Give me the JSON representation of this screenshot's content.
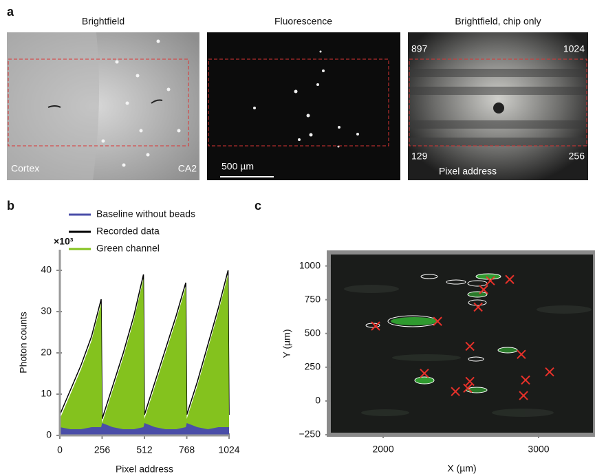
{
  "panel_labels": [
    "a",
    "b",
    "c"
  ],
  "panel_a": {
    "images": [
      {
        "title": "Brightfield",
        "labels": [
          "Cortex",
          "CA2"
        ]
      },
      {
        "title": "Fluorescence",
        "scale_bar": "500 µm"
      },
      {
        "title": "Brightfield, chip only",
        "labels": [
          "897",
          "1024",
          "129",
          "256",
          "Pixel address"
        ]
      }
    ]
  },
  "chart_data": [
    {
      "type": "area",
      "ylabel": "Photon counts",
      "multiplier": "×10³",
      "xlabel": "Pixel address",
      "x": [
        0,
        64,
        128,
        192,
        250,
        256,
        320,
        384,
        448,
        506,
        512,
        576,
        640,
        704,
        762,
        768,
        832,
        896,
        960,
        1018,
        1024
      ],
      "series": [
        {
          "name": "Baseline without beads",
          "color": "#4a4ea8",
          "style": "area",
          "values": [
            2,
            1.5,
            1.5,
            2,
            2,
            3,
            2,
            1.5,
            1.5,
            2,
            3,
            2,
            1.5,
            1.5,
            2,
            3,
            2,
            1.5,
            2,
            2,
            2
          ]
        },
        {
          "name": "Recorded data",
          "color": "#000000",
          "style": "line",
          "values": [
            5,
            11,
            17,
            24,
            33,
            4,
            12,
            20,
            29,
            39,
            5,
            13,
            21,
            29,
            37,
            5,
            13,
            22,
            31,
            40,
            5
          ]
        },
        {
          "name": "Green channel",
          "color": "#84c21e",
          "style": "area",
          "values": [
            4,
            10,
            16,
            23,
            32,
            3,
            11,
            19,
            28,
            38,
            4,
            12,
            20,
            28,
            36,
            4,
            12,
            21,
            30,
            39,
            4
          ]
        }
      ],
      "xlim": [
        0,
        1024
      ],
      "xticks": [
        0,
        256,
        512,
        768,
        1024
      ],
      "ylim": [
        0,
        45
      ],
      "yticks": [
        0,
        10,
        20,
        30,
        40
      ]
    },
    {
      "type": "scatter",
      "xlabel": "X (µm)",
      "ylabel": "Y (µm)",
      "color": "#e8312a",
      "x": [
        1951,
        2350,
        2265,
        2558,
        2558,
        2544,
        2465,
        2611,
        2646,
        2690,
        2814,
        2889,
        2916,
        2903,
        3071
      ],
      "values": [
        555,
        590,
        205,
        405,
        145,
        95,
        70,
        695,
        825,
        890,
        900,
        345,
        155,
        40,
        215
      ],
      "xlim": [
        1650,
        3363
      ],
      "xticks": [
        2000,
        3000
      ],
      "ylim": [
        -250,
        1100
      ],
      "yticks": [
        {
          "value": -250,
          "label": "−250"
        },
        0,
        250,
        500,
        750,
        1000
      ]
    }
  ]
}
